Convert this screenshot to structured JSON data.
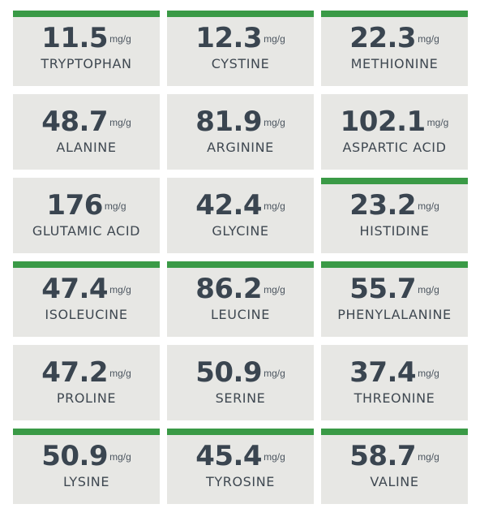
{
  "colors": {
    "card_background": "#e7e7e4",
    "accent_bar": "#3a9a46",
    "text": "#3a4550"
  },
  "amino_acids": [
    {
      "name": "TRYPTOPHAN",
      "value": "11.5",
      "unit": "mg/g",
      "accent": true
    },
    {
      "name": "CYSTINE",
      "value": "12.3",
      "unit": "mg/g",
      "accent": true
    },
    {
      "name": "METHIONINE",
      "value": "22.3",
      "unit": "mg/g",
      "accent": true
    },
    {
      "name": "ALANINE",
      "value": "48.7",
      "unit": "mg/g",
      "accent": false
    },
    {
      "name": "ARGININE",
      "value": "81.9",
      "unit": "mg/g",
      "accent": false
    },
    {
      "name": "ASPARTIC ACID",
      "value": "102.1",
      "unit": "mg/g",
      "accent": false
    },
    {
      "name": "GLUTAMIC ACID",
      "value": "176",
      "unit": "mg/g",
      "accent": false
    },
    {
      "name": "GLYCINE",
      "value": "42.4",
      "unit": "mg/g",
      "accent": false
    },
    {
      "name": "HISTIDINE",
      "value": "23.2",
      "unit": "mg/g",
      "accent": true
    },
    {
      "name": "ISOLEUCINE",
      "value": "47.4",
      "unit": "mg/g",
      "accent": true
    },
    {
      "name": "LEUCINE",
      "value": "86.2",
      "unit": "mg/g",
      "accent": true
    },
    {
      "name": "PHENYLALANINE",
      "value": "55.7",
      "unit": "mg/g",
      "accent": true
    },
    {
      "name": "PROLINE",
      "value": "47.2",
      "unit": "mg/g",
      "accent": false
    },
    {
      "name": "SERINE",
      "value": "50.9",
      "unit": "mg/g",
      "accent": false
    },
    {
      "name": "THREONINE",
      "value": "37.4",
      "unit": "mg/g",
      "accent": false
    },
    {
      "name": "LYSINE",
      "value": "50.9",
      "unit": "mg/g",
      "accent": true
    },
    {
      "name": "TYROSINE",
      "value": "45.4",
      "unit": "mg/g",
      "accent": true
    },
    {
      "name": "VALINE",
      "value": "58.7",
      "unit": "mg/g",
      "accent": true
    }
  ]
}
